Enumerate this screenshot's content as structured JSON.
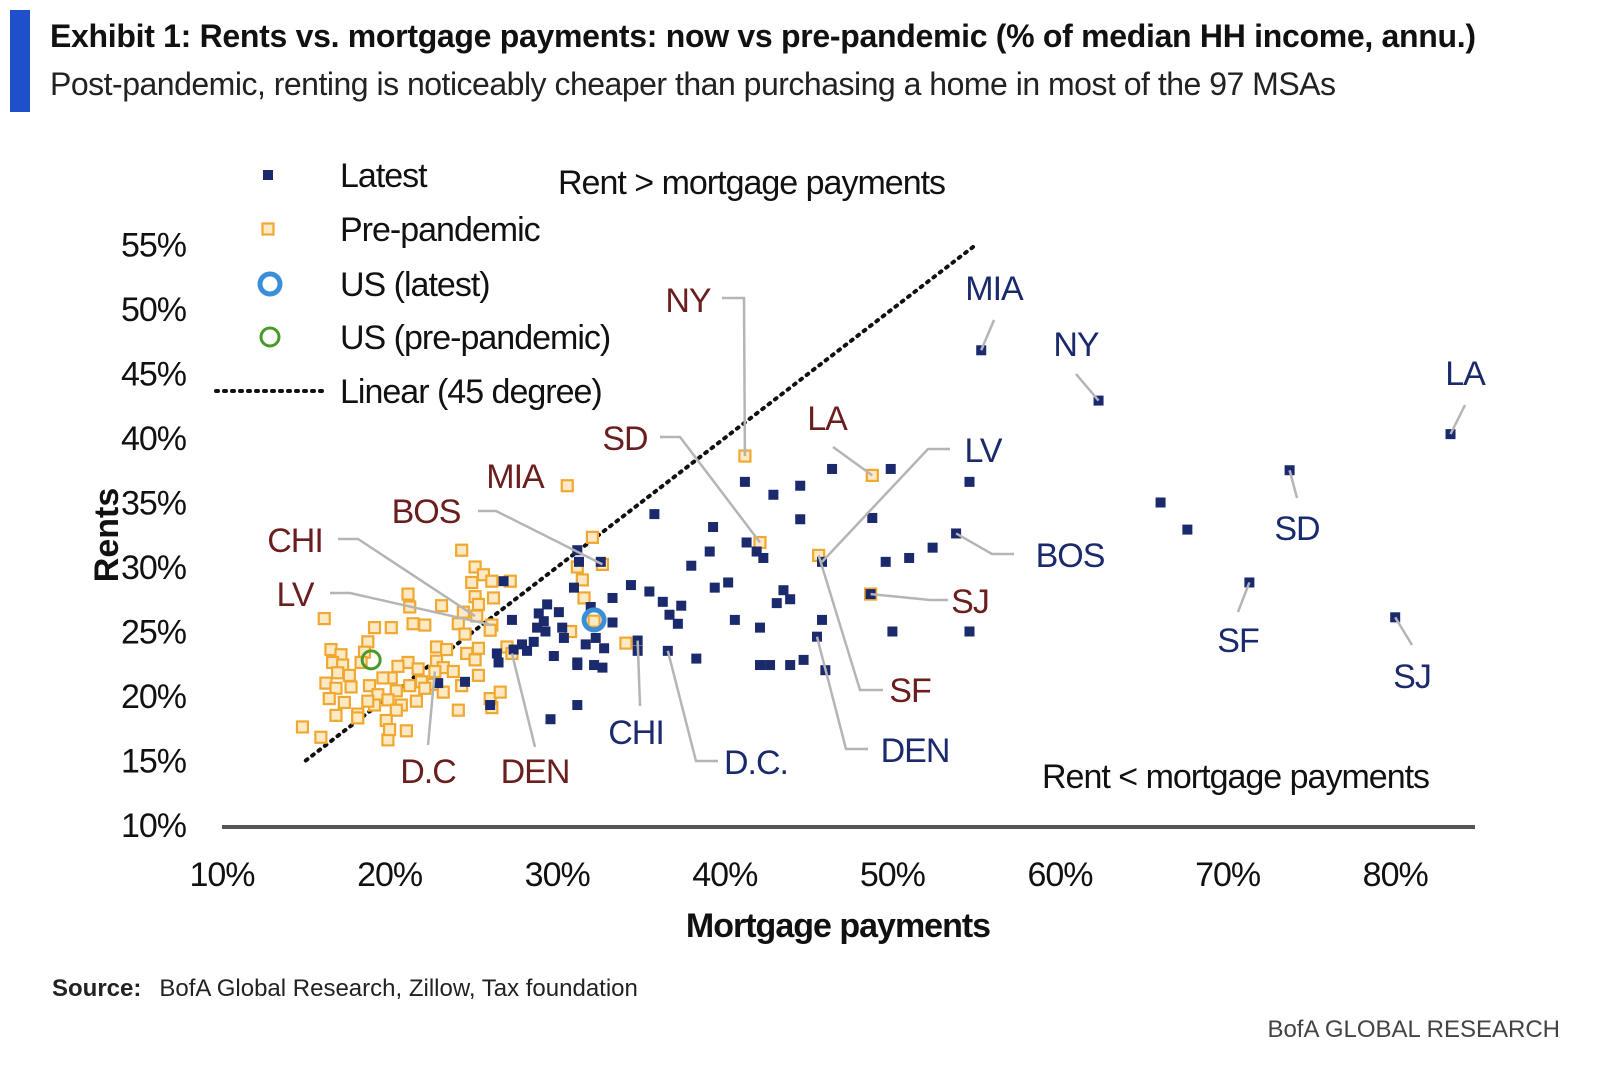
{
  "header": {
    "title": "Exhibit 1: Rents vs. mortgage payments: now vs pre-pandemic (% of median HH income, annu.)",
    "subtitle": "Post-pandemic, renting is noticeably cheaper than purchasing a home in most of the 97 MSAs"
  },
  "footer": {
    "source_label": "Source:",
    "source_text": "BofA Global Research, Zillow, Tax foundation",
    "brand": "BofA GLOBAL RESEARCH"
  },
  "colors": {
    "latest": "#1a2a6c",
    "pre_pandemic_fill": "#fde9c4",
    "pre_pandemic_stroke": "#f0a830",
    "us_latest": "#3a8fd8",
    "us_pre": "#4a9a2a",
    "label_pre": "#6b1e1e",
    "label_latest": "#1a2a6c"
  },
  "chart_data": {
    "type": "scatter",
    "xlabel": "Mortgage payments",
    "ylabel": "Rents",
    "xlim": [
      10,
      85
    ],
    "ylim": [
      10,
      55
    ],
    "xticks": [
      "10%",
      "20%",
      "30%",
      "40%",
      "50%",
      "60%",
      "70%",
      "80%"
    ],
    "xtick_values": [
      10,
      20,
      30,
      40,
      50,
      60,
      70,
      80
    ],
    "yticks": [
      "10%",
      "15%",
      "20%",
      "25%",
      "30%",
      "35%",
      "40%",
      "45%",
      "50%",
      "55%"
    ],
    "ytick_values": [
      10,
      15,
      20,
      25,
      30,
      35,
      40,
      45,
      50,
      55
    ],
    "legend": {
      "position": "top-left",
      "entries": [
        "Latest",
        "Pre-pandemic",
        "US (latest)",
        "US (pre-pandemic)",
        "Linear (45 degree)"
      ]
    },
    "annotations": [
      "Rent > mortgage payments",
      "Rent < mortgage payments"
    ],
    "reference_line": {
      "name": "Linear (45 degree)",
      "x": [
        15,
        55
      ],
      "y": [
        15,
        55
      ]
    },
    "series": [
      {
        "name": "Latest",
        "points": [
          [
            55.3,
            46.8
          ],
          [
            62.3,
            42.9
          ],
          [
            83.3,
            40.3
          ],
          [
            73.7,
            37.5
          ],
          [
            71.3,
            28.8
          ],
          [
            80,
            26.1
          ],
          [
            66,
            35
          ],
          [
            67.6,
            32.9
          ],
          [
            54.6,
            36.6
          ],
          [
            49.9,
            37.6
          ],
          [
            46.4,
            37.6
          ],
          [
            44.5,
            36.3
          ],
          [
            42.9,
            35.6
          ],
          [
            41.2,
            36.6
          ],
          [
            48.8,
            33.8
          ],
          [
            44.5,
            33.7
          ],
          [
            39.3,
            33.1
          ],
          [
            35.8,
            34.1
          ],
          [
            53.8,
            32.6
          ],
          [
            52.4,
            31.5
          ],
          [
            51,
            30.7
          ],
          [
            49.6,
            30.4
          ],
          [
            45.8,
            30.4
          ],
          [
            41.3,
            31.9
          ],
          [
            41.9,
            31.2
          ],
          [
            42.3,
            30.7
          ],
          [
            39.1,
            31.2
          ],
          [
            38,
            30.1
          ],
          [
            39.4,
            28.4
          ],
          [
            40.2,
            28.8
          ],
          [
            43.5,
            28.2
          ],
          [
            43.9,
            27.5
          ],
          [
            43.1,
            27.2
          ],
          [
            48.7,
            27.9
          ],
          [
            45.8,
            25.9
          ],
          [
            50,
            25
          ],
          [
            54.6,
            25
          ],
          [
            45.5,
            24.6
          ],
          [
            46,
            22
          ],
          [
            42.1,
            25.3
          ],
          [
            40.6,
            25.9
          ],
          [
            37.4,
            27
          ],
          [
            36.7,
            26.3
          ],
          [
            37.2,
            25.6
          ],
          [
            36.3,
            27.3
          ],
          [
            34.4,
            28.6
          ],
          [
            35.5,
            28.1
          ],
          [
            33.3,
            27.6
          ],
          [
            34.8,
            24.3
          ],
          [
            34.8,
            23.5
          ],
          [
            36.6,
            23.5
          ],
          [
            38.3,
            22.9
          ],
          [
            42.1,
            22.4
          ],
          [
            42.7,
            22.4
          ],
          [
            43.9,
            22.4
          ],
          [
            44.7,
            22.8
          ],
          [
            31.3,
            30.4
          ],
          [
            31.2,
            31.3
          ],
          [
            32.6,
            30.4
          ],
          [
            31,
            28.4
          ],
          [
            32,
            26.9
          ],
          [
            28.8,
            25.3
          ],
          [
            28.9,
            26.4
          ],
          [
            29.2,
            25.8
          ],
          [
            29.4,
            27.1
          ],
          [
            29.3,
            25
          ],
          [
            28.6,
            24.2
          ],
          [
            28.2,
            23.5
          ],
          [
            27.9,
            24
          ],
          [
            27.4,
            23.6
          ],
          [
            30.1,
            26.5
          ],
          [
            30.3,
            25.3
          ],
          [
            30.4,
            24.5
          ],
          [
            29.8,
            23.1
          ],
          [
            32.2,
            22.4
          ],
          [
            31.7,
            24
          ],
          [
            32.7,
            22.2
          ],
          [
            33.3,
            25.7
          ],
          [
            26.4,
            23.3
          ],
          [
            26.5,
            22.6
          ],
          [
            26,
            19.3
          ],
          [
            27.3,
            25.9
          ],
          [
            26.8,
            28.9
          ],
          [
            22.9,
            21
          ],
          [
            24.5,
            21.1
          ],
          [
            31.2,
            19.3
          ],
          [
            29.6,
            18.2
          ],
          [
            31.2,
            22.6
          ],
          [
            32.3,
            24.5
          ],
          [
            32.8,
            23.7
          ],
          [
            31.2,
            22.4
          ]
        ]
      },
      {
        "name": "Pre-pandemic",
        "points": [
          [
            41.2,
            38.6
          ],
          [
            48.8,
            37.1
          ],
          [
            30.6,
            36.3
          ],
          [
            32.1,
            32.3
          ],
          [
            42.1,
            31.9
          ],
          [
            45.6,
            30.9
          ],
          [
            48.7,
            27.9
          ],
          [
            32.7,
            30.2
          ],
          [
            31.2,
            30
          ],
          [
            31.5,
            29
          ],
          [
            31.6,
            27.6
          ],
          [
            25.1,
            30
          ],
          [
            25.6,
            29.4
          ],
          [
            24.3,
            31.3
          ],
          [
            26.1,
            28.9
          ],
          [
            27.2,
            28.9
          ],
          [
            24.9,
            28.8
          ],
          [
            25.1,
            27.7
          ],
          [
            26.2,
            27.6
          ],
          [
            25.3,
            27.1
          ],
          [
            24.4,
            26.5
          ],
          [
            23.1,
            27
          ],
          [
            21.1,
            27.9
          ],
          [
            21.2,
            26.9
          ],
          [
            20.1,
            25.3
          ],
          [
            21.4,
            25.6
          ],
          [
            22.1,
            25.5
          ],
          [
            19.1,
            25.3
          ],
          [
            18.7,
            24.2
          ],
          [
            16.1,
            26
          ],
          [
            25.2,
            26.2
          ],
          [
            26.1,
            25.5
          ],
          [
            24.1,
            25.6
          ],
          [
            24.5,
            24.8
          ],
          [
            26,
            25.1
          ],
          [
            27,
            23.8
          ],
          [
            27.3,
            23.3
          ],
          [
            22.8,
            23.8
          ],
          [
            23.4,
            23.6
          ],
          [
            24.6,
            23.3
          ],
          [
            25.3,
            23.7
          ],
          [
            25.1,
            22.8
          ],
          [
            22.8,
            22.7
          ],
          [
            23.2,
            22.2
          ],
          [
            22.7,
            21.9
          ],
          [
            21.1,
            22.6
          ],
          [
            21.7,
            22.1
          ],
          [
            20.5,
            22.3
          ],
          [
            20.1,
            21.4
          ],
          [
            19.6,
            21.4
          ],
          [
            16.5,
            23.6
          ],
          [
            17.1,
            23.2
          ],
          [
            18.5,
            23.4
          ],
          [
            16.6,
            22.6
          ],
          [
            17.2,
            22.4
          ],
          [
            18.3,
            22.6
          ],
          [
            16.9,
            21.8
          ],
          [
            17.6,
            21.6
          ],
          [
            16.2,
            21
          ],
          [
            16.8,
            20.6
          ],
          [
            17.7,
            20.7
          ],
          [
            18.8,
            20.8
          ],
          [
            19.3,
            20.1
          ],
          [
            20.4,
            20.4
          ],
          [
            19.9,
            19.7
          ],
          [
            21.2,
            20.8
          ],
          [
            21.9,
            21.1
          ],
          [
            22.6,
            20.9
          ],
          [
            23.2,
            20.3
          ],
          [
            22.1,
            20.6
          ],
          [
            21.6,
            19.6
          ],
          [
            20.7,
            19.3
          ],
          [
            19.1,
            19.3
          ],
          [
            18.7,
            19.6
          ],
          [
            17.3,
            19.5
          ],
          [
            16.4,
            19.8
          ],
          [
            16.8,
            18.5
          ],
          [
            18.1,
            18.6
          ],
          [
            18.1,
            18.3
          ],
          [
            20.4,
            18.9
          ],
          [
            19.8,
            18.1
          ],
          [
            24.1,
            18.9
          ],
          [
            26.1,
            19.1
          ],
          [
            26,
            19.8
          ],
          [
            26.6,
            20.3
          ],
          [
            14.8,
            17.6
          ],
          [
            15.9,
            16.8
          ],
          [
            19.9,
            16.6
          ],
          [
            20,
            17.4
          ],
          [
            21,
            17.3
          ],
          [
            32.2,
            25.8
          ],
          [
            30.8,
            25
          ],
          [
            34.1,
            24.1
          ],
          [
            24.3,
            20.8
          ],
          [
            23.8,
            21.9
          ],
          [
            25.3,
            21.6
          ]
        ]
      },
      {
        "name": "US (latest)",
        "points": [
          [
            32.2,
            25.9
          ]
        ]
      },
      {
        "name": "US (pre-pandemic)",
        "points": [
          [
            18.9,
            22.8
          ]
        ]
      }
    ],
    "point_labels_pre_pandemic": [
      {
        "text": "NY",
        "point": [
          41.2,
          38.6
        ]
      },
      {
        "text": "SD",
        "point": [
          42.1,
          31.9
        ]
      },
      {
        "text": "LA",
        "point": [
          48.8,
          37.1
        ]
      },
      {
        "text": "MIA",
        "point": [
          30.6,
          36.3
        ]
      },
      {
        "text": "BOS",
        "point": [
          32.7,
          30.2
        ]
      },
      {
        "text": "CHI",
        "point": [
          25.1,
          26.2
        ]
      },
      {
        "text": "LV",
        "point": [
          26.1,
          25.5
        ]
      },
      {
        "text": "SF",
        "point": [
          45.6,
          30.9
        ]
      },
      {
        "text": "SJ",
        "point": [
          48.7,
          27.9
        ]
      },
      {
        "text": "D.C",
        "point": [
          22.7,
          21.9
        ]
      },
      {
        "text": "DEN",
        "point": [
          27.3,
          23.3
        ]
      }
    ],
    "point_labels_latest": [
      {
        "text": "MIA",
        "point": [
          55.3,
          46.8
        ]
      },
      {
        "text": "NY",
        "point": [
          62.3,
          42.9
        ]
      },
      {
        "text": "LA",
        "point": [
          83.3,
          40.3
        ]
      },
      {
        "text": "LV",
        "point": [
          45.8,
          30.4
        ]
      },
      {
        "text": "SD",
        "point": [
          73.7,
          37.5
        ]
      },
      {
        "text": "BOS",
        "point": [
          53.8,
          32.6
        ]
      },
      {
        "text": "SF",
        "point": [
          71.3,
          28.8
        ]
      },
      {
        "text": "SJ",
        "point": [
          80,
          26.1
        ]
      },
      {
        "text": "CHI",
        "point": [
          34.8,
          24.3
        ]
      },
      {
        "text": "D.C.",
        "point": [
          36.6,
          23.5
        ]
      },
      {
        "text": "DEN",
        "point": [
          45.5,
          24.6
        ]
      }
    ]
  }
}
